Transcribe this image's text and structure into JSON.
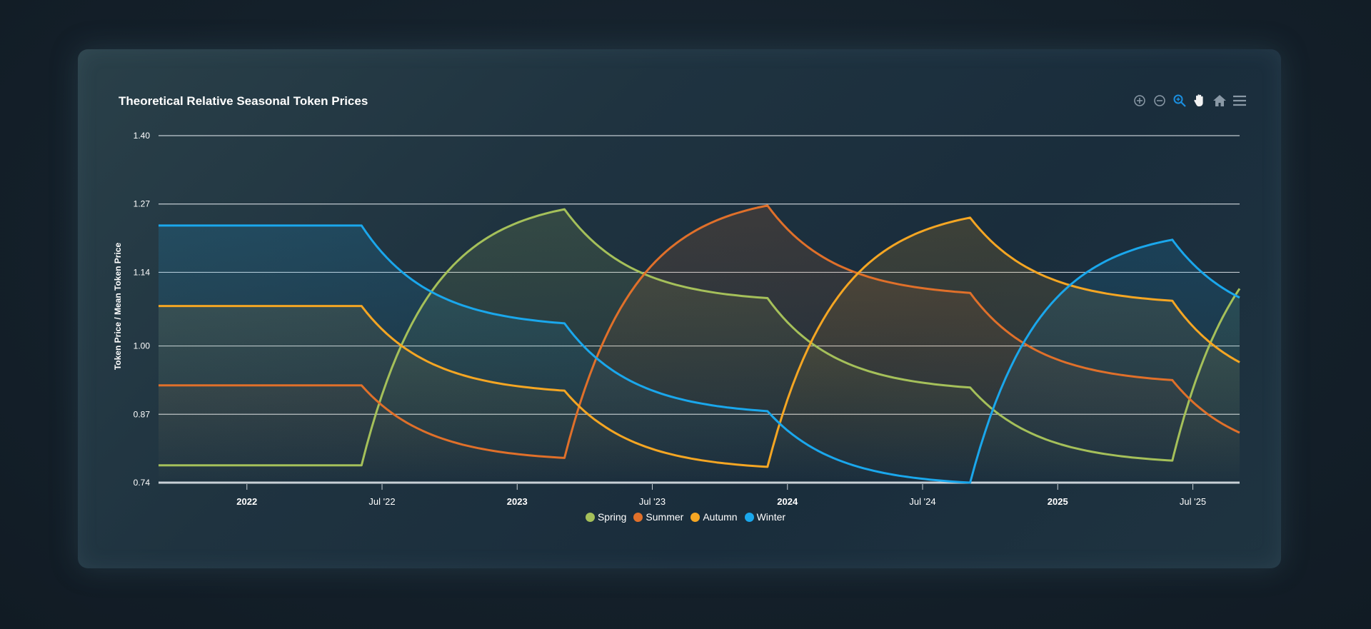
{
  "chart_data": {
    "type": "line",
    "title": "Theoretical Relative Seasonal Token Prices",
    "ylabel": "Token Price / Mean Token Price",
    "xlabel": "",
    "ylim": [
      0.74,
      1.4
    ],
    "xlim_years": [
      2021.673,
      2025.673
    ],
    "y_ticks": [
      "1.40",
      "1.27",
      "1.14",
      "1.00",
      "0.87",
      "0.74"
    ],
    "y_tick_values": [
      1.4,
      1.27,
      1.14,
      1.0,
      0.87,
      0.74
    ],
    "x_ticks": [
      {
        "label": "2022",
        "year": 2022.0,
        "bold": true
      },
      {
        "label": "Jul '22",
        "year": 2022.5,
        "bold": false
      },
      {
        "label": "2023",
        "year": 2023.0,
        "bold": true
      },
      {
        "label": "Jul '23",
        "year": 2023.5,
        "bold": false
      },
      {
        "label": "2024",
        "year": 2024.0,
        "bold": true
      },
      {
        "label": "Jul '24",
        "year": 2024.5,
        "bold": false
      },
      {
        "label": "2025",
        "year": 2025.0,
        "bold": true
      },
      {
        "label": "Jul '25",
        "year": 2025.5,
        "bold": false
      }
    ],
    "grid": true,
    "legend_position": "bottom-center",
    "breakpoint_years": [
      2021.673,
      2022.424,
      2023.175,
      2023.926,
      2024.676,
      2025.424,
      2025.673
    ],
    "series": [
      {
        "name": "Spring",
        "color": "#a5c05a",
        "values": [
          0.773,
          0.773,
          1.26,
          1.091,
          0.921,
          0.782,
          1.109
        ]
      },
      {
        "name": "Summer",
        "color": "#e0702a",
        "values": [
          0.925,
          0.925,
          0.787,
          1.267,
          1.101,
          0.935,
          0.835
        ]
      },
      {
        "name": "Autumn",
        "color": "#f5a623",
        "values": [
          1.076,
          1.076,
          0.915,
          0.77,
          1.244,
          1.086,
          0.969
        ]
      },
      {
        "name": "Winter",
        "color": "#1aa7ec",
        "values": [
          1.229,
          1.229,
          1.043,
          0.876,
          0.74,
          1.202,
          1.092
        ]
      }
    ]
  },
  "toolbar": {
    "icons": [
      "zoom-in-icon",
      "zoom-out-icon",
      "selection-zoom-icon",
      "pan-hand-icon",
      "reset-home-icon",
      "menu-icon"
    ],
    "active_color": "#1a8fe0"
  }
}
